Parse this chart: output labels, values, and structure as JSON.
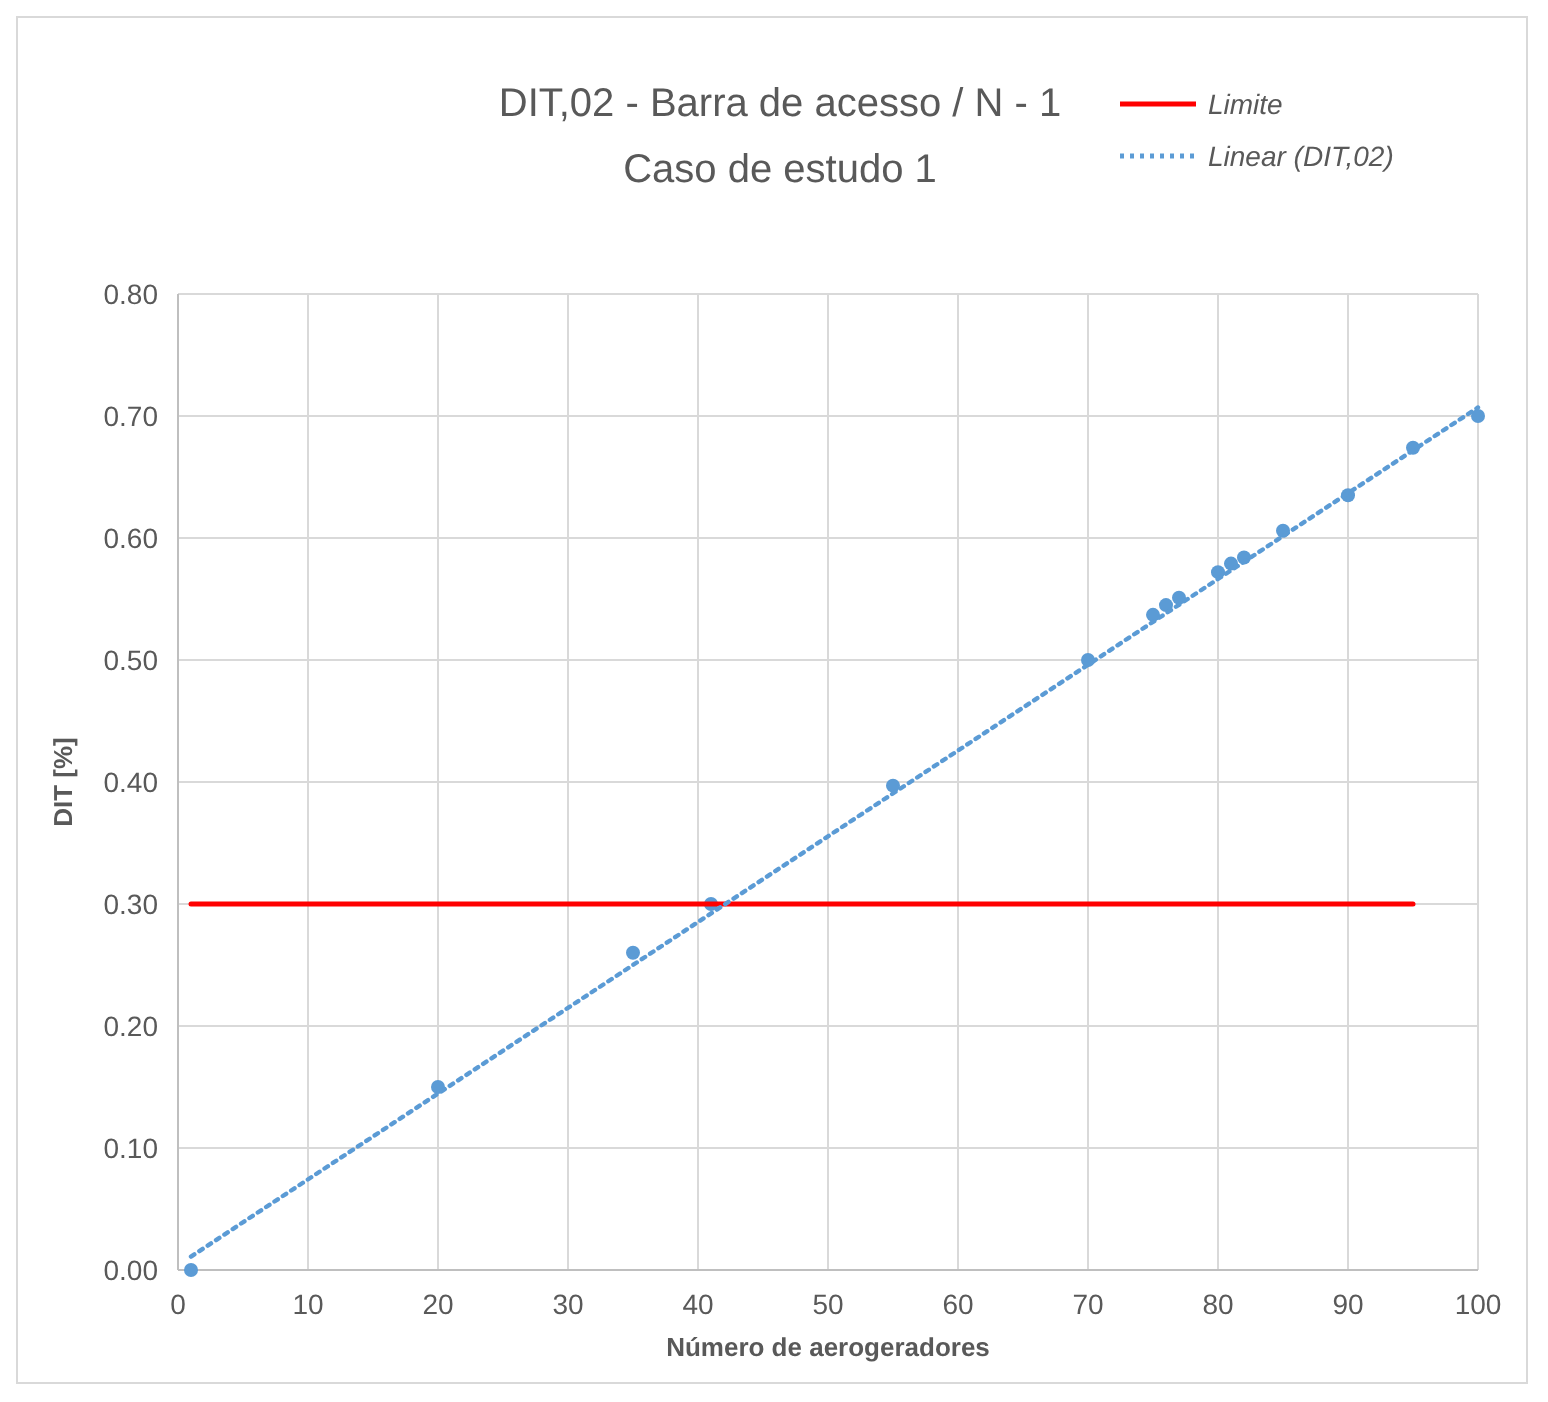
{
  "chart_data": {
    "type": "scatter",
    "title": "DIT,02 - Barra de acesso / N - 1",
    "subtitle": "Caso de estudo 1",
    "xlabel": "Número de aerogeradores",
    "ylabel": "DIT [%]",
    "xlim": [
      0,
      100
    ],
    "xticks": [
      0,
      10,
      20,
      30,
      40,
      50,
      60,
      70,
      80,
      90,
      100
    ],
    "ylim": [
      0,
      0.8
    ],
    "yticks": [
      {
        "value": 0,
        "label": "0.00"
      },
      {
        "value": 0.1,
        "label": "0.10"
      },
      {
        "value": 0.2,
        "label": "0.20"
      },
      {
        "value": 0.3,
        "label": "0.30"
      },
      {
        "value": 0.4,
        "label": "0.40"
      },
      {
        "value": 0.5,
        "label": "0.50"
      },
      {
        "value": 0.6,
        "label": "0.60"
      },
      {
        "value": 0.7,
        "label": "0.70"
      },
      {
        "value": 0.8,
        "label": "0.80"
      }
    ],
    "grid": true,
    "legend": "top right",
    "series": [
      {
        "marker": "circle",
        "color": "#5b9bd5",
        "x": [
          1,
          20,
          35,
          41,
          55,
          70,
          75,
          76,
          77,
          80,
          81,
          82,
          85,
          90,
          95,
          100
        ],
        "values": [
          0.0,
          0.15,
          0.26,
          0.3,
          0.397,
          0.5,
          0.537,
          0.545,
          0.551,
          0.572,
          0.579,
          0.584,
          0.606,
          0.635,
          0.674,
          0.7
        ]
      },
      {
        "type": "line",
        "name": "Limite",
        "color": "#ff0000",
        "line_style": "solid",
        "x": [
          1,
          95
        ],
        "values": [
          0.3,
          0.3
        ]
      },
      {
        "type": "line",
        "name": "Linear  (DIT,02)",
        "color": "#5b9bd5",
        "line_style": "dotted",
        "x": [
          1,
          100
        ],
        "values": [
          0.011,
          0.707
        ]
      }
    ]
  }
}
